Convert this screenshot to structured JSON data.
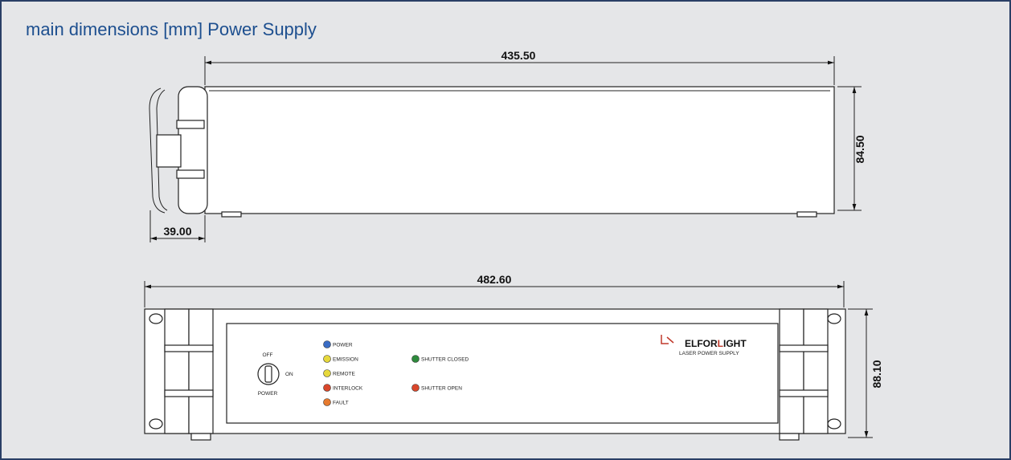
{
  "header": {
    "title": "main dimensions [mm] Power Supply"
  },
  "side_view": {
    "length": "435.50",
    "height": "84.50",
    "handle_depth": "39.00"
  },
  "front_view": {
    "width": "482.60",
    "height": "88.10",
    "key_switch": {
      "off": "OFF",
      "on": "ON",
      "label": "POWER"
    },
    "indicators": [
      {
        "label": "POWER",
        "color": "#3a6cc4"
      },
      {
        "label": "EMISSION",
        "color": "#e6d83c"
      },
      {
        "label": "REMOTE",
        "color": "#e6d83c"
      },
      {
        "label": "INTERLOCK",
        "color": "#d9472b"
      },
      {
        "label": "FAULT",
        "color": "#e67a2e"
      }
    ],
    "shutter_indicators": [
      {
        "label": "SHUTTER CLOSED",
        "color": "#2e8a3c"
      },
      {
        "label": "SHUTTER OPEN",
        "color": "#d9472b"
      }
    ],
    "brand": {
      "parts": [
        "ELFOR",
        "L",
        "IGHT"
      ],
      "subtitle": "LASER POWER SUPPLY"
    }
  }
}
